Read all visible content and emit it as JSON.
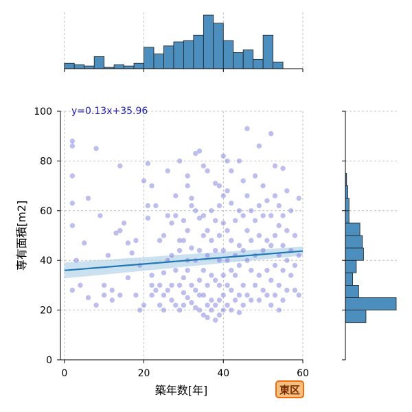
{
  "colors": {
    "hist": "#4c8fbf",
    "hist_edge": "#1a1a1a",
    "point": "#6f6fd6",
    "point_edge": "#bcbcf0",
    "fit_line": "#1f77b4",
    "ci_band": "#b7d4ea",
    "grid": "#b0b0b0",
    "badge_bg": "#f5c080",
    "badge_border": "#f06a10"
  },
  "badge": {
    "label": "東区"
  },
  "chart_data": {
    "type": "scatter",
    "xlabel": "築年数[年]",
    "ylabel": "専有面積[m2]",
    "xlim": [
      -1,
      60
    ],
    "ylim": [
      0,
      100
    ],
    "xticks": [
      0,
      20,
      40,
      60
    ],
    "yticks": [
      0,
      20,
      40,
      60,
      80,
      100
    ],
    "grid": true,
    "annotation": "y=0.13x+35.96",
    "fit": {
      "slope": 0.13,
      "intercept": 35.96,
      "ci_start": 3.2,
      "ci_end": 1.8,
      "x_range": [
        0,
        60
      ]
    },
    "points": [
      [
        2,
        88
      ],
      [
        2,
        86
      ],
      [
        3,
        40
      ],
      [
        8,
        85
      ],
      [
        2,
        74
      ],
      [
        2,
        63
      ],
      [
        2,
        54
      ],
      [
        6,
        65
      ],
      [
        9,
        58
      ],
      [
        10,
        26
      ],
      [
        12,
        24
      ],
      [
        14,
        78
      ],
      [
        14,
        52
      ],
      [
        16,
        47
      ],
      [
        18,
        48
      ],
      [
        19,
        20
      ],
      [
        20,
        72
      ],
      [
        21,
        79
      ],
      [
        21,
        62
      ],
      [
        21,
        57
      ],
      [
        22,
        70
      ],
      [
        22,
        34
      ],
      [
        22,
        30
      ],
      [
        22,
        26
      ],
      [
        23,
        28
      ],
      [
        24,
        48
      ],
      [
        24,
        30
      ],
      [
        24,
        22
      ],
      [
        25,
        50
      ],
      [
        25,
        35
      ],
      [
        25,
        26
      ],
      [
        25,
        20
      ],
      [
        26,
        76
      ],
      [
        26,
        58
      ],
      [
        26,
        40
      ],
      [
        26,
        28
      ],
      [
        27,
        42
      ],
      [
        27,
        30
      ],
      [
        27,
        24
      ],
      [
        28,
        66
      ],
      [
        28,
        58
      ],
      [
        28,
        36
      ],
      [
        28,
        22
      ],
      [
        29,
        80
      ],
      [
        29,
        44
      ],
      [
        29,
        30
      ],
      [
        29,
        20
      ],
      [
        30,
        56
      ],
      [
        30,
        48
      ],
      [
        30,
        33
      ],
      [
        30,
        27
      ],
      [
        30,
        22
      ],
      [
        31,
        74
      ],
      [
        31,
        70
      ],
      [
        31,
        52
      ],
      [
        31,
        36
      ],
      [
        31,
        25
      ],
      [
        32,
        65
      ],
      [
        32,
        62
      ],
      [
        32,
        45
      ],
      [
        32,
        30
      ],
      [
        32,
        23
      ],
      [
        33,
        83
      ],
      [
        33,
        60
      ],
      [
        33,
        40
      ],
      [
        33,
        28
      ],
      [
        33,
        21
      ],
      [
        34,
        84
      ],
      [
        34,
        57
      ],
      [
        34,
        44
      ],
      [
        34,
        32
      ],
      [
        34,
        26
      ],
      [
        34,
        20
      ],
      [
        35,
        78
      ],
      [
        35,
        58
      ],
      [
        35,
        50
      ],
      [
        35,
        36
      ],
      [
        35,
        26
      ],
      [
        35,
        18
      ],
      [
        36,
        76
      ],
      [
        36,
        52
      ],
      [
        36,
        42
      ],
      [
        36,
        30
      ],
      [
        36,
        22
      ],
      [
        36,
        17
      ],
      [
        37,
        60
      ],
      [
        37,
        48
      ],
      [
        37,
        34
      ],
      [
        37,
        24
      ],
      [
        37,
        20
      ],
      [
        38,
        71
      ],
      [
        38,
        56
      ],
      [
        38,
        44
      ],
      [
        38,
        32
      ],
      [
        38,
        22
      ],
      [
        38,
        16
      ],
      [
        39,
        70
      ],
      [
        39,
        62
      ],
      [
        39,
        50
      ],
      [
        39,
        40
      ],
      [
        39,
        30
      ],
      [
        39,
        24
      ],
      [
        39,
        18
      ],
      [
        40,
        82
      ],
      [
        40,
        66
      ],
      [
        40,
        55
      ],
      [
        40,
        44
      ],
      [
        40,
        34
      ],
      [
        40,
        26
      ],
      [
        40,
        20
      ],
      [
        41,
        80
      ],
      [
        41,
        68
      ],
      [
        41,
        52
      ],
      [
        41,
        40
      ],
      [
        41,
        30
      ],
      [
        41,
        22
      ],
      [
        42,
        76
      ],
      [
        42,
        63
      ],
      [
        42,
        48
      ],
      [
        42,
        36
      ],
      [
        42,
        28
      ],
      [
        42,
        20
      ],
      [
        43,
        56
      ],
      [
        43,
        42
      ],
      [
        43,
        34
      ],
      [
        43,
        24
      ],
      [
        44,
        80
      ],
      [
        44,
        60
      ],
      [
        44,
        46
      ],
      [
        44,
        38
      ],
      [
        44,
        26
      ],
      [
        44,
        19
      ],
      [
        45,
        72
      ],
      [
        45,
        58
      ],
      [
        45,
        44
      ],
      [
        45,
        30
      ],
      [
        45,
        22
      ],
      [
        46,
        93
      ],
      [
        46,
        66
      ],
      [
        46,
        52
      ],
      [
        46,
        40
      ],
      [
        46,
        26
      ],
      [
        47,
        60
      ],
      [
        47,
        48
      ],
      [
        47,
        36
      ],
      [
        47,
        24
      ],
      [
        48,
        74
      ],
      [
        48,
        56
      ],
      [
        48,
        42
      ],
      [
        48,
        30
      ],
      [
        49,
        86
      ],
      [
        49,
        62
      ],
      [
        49,
        50
      ],
      [
        49,
        34
      ],
      [
        49,
        24
      ],
      [
        50,
        70
      ],
      [
        50,
        58
      ],
      [
        50,
        44
      ],
      [
        50,
        28
      ],
      [
        51,
        64
      ],
      [
        51,
        48
      ],
      [
        51,
        36
      ],
      [
        51,
        26
      ],
      [
        52,
        91
      ],
      [
        52,
        58
      ],
      [
        52,
        46
      ],
      [
        52,
        32
      ],
      [
        52,
        22
      ],
      [
        53,
        78
      ],
      [
        53,
        66
      ],
      [
        53,
        50
      ],
      [
        53,
        38
      ],
      [
        53,
        26
      ],
      [
        54,
        62
      ],
      [
        54,
        54
      ],
      [
        54,
        42
      ],
      [
        54,
        30
      ],
      [
        54,
        20
      ],
      [
        55,
        77
      ],
      [
        55,
        58
      ],
      [
        55,
        46
      ],
      [
        55,
        36
      ],
      [
        55,
        24
      ],
      [
        56,
        68
      ],
      [
        56,
        52
      ],
      [
        56,
        40
      ],
      [
        56,
        28
      ],
      [
        57,
        60
      ],
      [
        57,
        44
      ],
      [
        57,
        34
      ],
      [
        58,
        50
      ],
      [
        58,
        38
      ],
      [
        58,
        28
      ],
      [
        59,
        65
      ],
      [
        59,
        42
      ],
      [
        59,
        26
      ],
      [
        2,
        28
      ],
      [
        4,
        30
      ],
      [
        6,
        25
      ],
      [
        8,
        22
      ],
      [
        10,
        30
      ],
      [
        12,
        28
      ],
      [
        14,
        26
      ],
      [
        16,
        33
      ],
      [
        18,
        26
      ],
      [
        20,
        22
      ],
      [
        5,
        47
      ],
      [
        11,
        42
      ],
      [
        13,
        51
      ],
      [
        15,
        55
      ],
      [
        17,
        43
      ],
      [
        19,
        38
      ],
      [
        23,
        62
      ],
      [
        27,
        55
      ],
      [
        29,
        48
      ],
      [
        31,
        40
      ]
    ],
    "top_hist": {
      "bin_width": 2.5,
      "start": 0,
      "counts": [
        4,
        3,
        2,
        9,
        1,
        3,
        2,
        4,
        16,
        11,
        17,
        20,
        21,
        25,
        40,
        34,
        21,
        12,
        14,
        7,
        25,
        5
      ]
    },
    "right_hist": {
      "bin_width": 5,
      "start": 15,
      "counts": [
        17,
        42,
        11,
        6,
        9,
        15,
        14,
        12,
        3,
        3,
        2,
        1
      ]
    }
  }
}
